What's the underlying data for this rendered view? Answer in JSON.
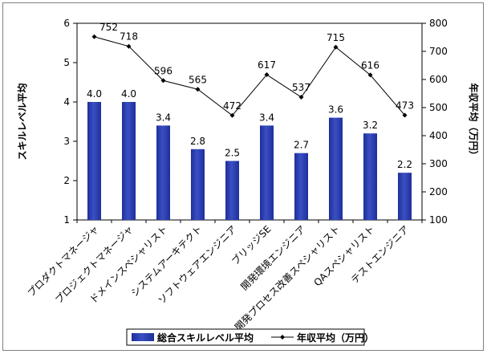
{
  "chart_data": {
    "type": "bar",
    "categories": [
      "プロダクトマネージャ",
      "プロジェクトマネージャ",
      "ドメインスペシャリスト",
      "システムアーキテクト",
      "ソフトウェアエンジニア",
      "ブリッジSE",
      "開発環境エンジニア",
      "開発プロセス改善スペシャリスト",
      "QAスペシャリスト",
      "テストエンジニア"
    ],
    "series": [
      {
        "name": "総合スキルレベル平均",
        "type": "bar",
        "axis": "left",
        "color": "#3b4fc4",
        "values": [
          4.0,
          4.0,
          3.4,
          2.8,
          2.5,
          3.4,
          2.7,
          3.6,
          3.2,
          2.2
        ],
        "labels": [
          "4.0",
          "4.0",
          "3.4",
          "2.8",
          "2.5",
          "3.4",
          "2.7",
          "3.6",
          "3.2",
          "2.2"
        ]
      },
      {
        "name": "年収平均（万円）",
        "type": "line",
        "axis": "right",
        "color": "#000000",
        "values": [
          752,
          718,
          596,
          565,
          472,
          617,
          537,
          715,
          616,
          473
        ],
        "labels": [
          "752",
          "718",
          "596",
          "565",
          "472",
          "617",
          "537",
          "715",
          "616",
          "473"
        ]
      }
    ],
    "ylabel": "スキルレベル平均",
    "y2label": "年収平均（万円）",
    "ylim": [
      1,
      6
    ],
    "y2lim": [
      100,
      800
    ],
    "yticks": [
      "1",
      "2",
      "3",
      "4",
      "5",
      "6"
    ],
    "y2ticks": [
      "100",
      "200",
      "300",
      "400",
      "500",
      "600",
      "700",
      "800"
    ],
    "grid": false,
    "legend_position": "bottom"
  }
}
